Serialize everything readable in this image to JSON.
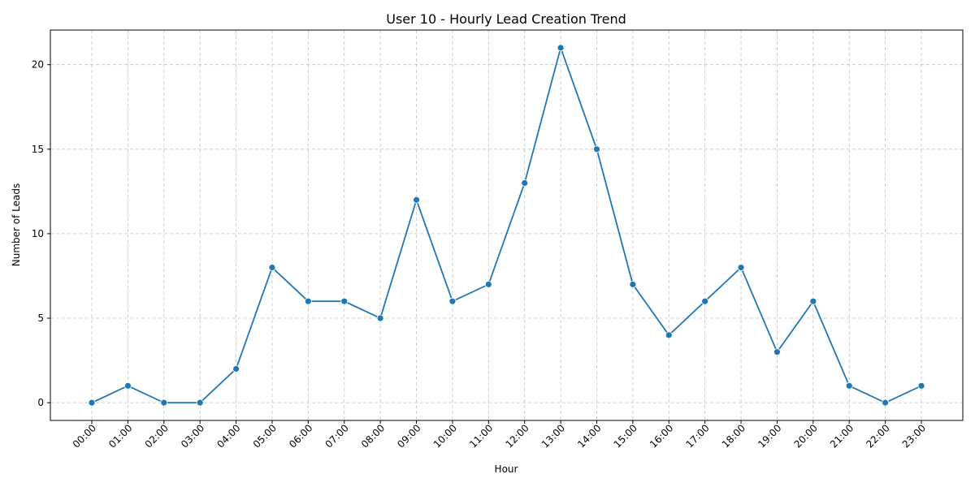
{
  "chart_data": {
    "type": "line",
    "title": "User 10 - Hourly Lead Creation Trend",
    "xlabel": "Hour",
    "ylabel": "Number of Leads",
    "categories": [
      "00:00",
      "01:00",
      "02:00",
      "03:00",
      "04:00",
      "05:00",
      "06:00",
      "07:00",
      "08:00",
      "09:00",
      "10:00",
      "11:00",
      "12:00",
      "13:00",
      "14:00",
      "15:00",
      "16:00",
      "17:00",
      "18:00",
      "19:00",
      "20:00",
      "21:00",
      "22:00",
      "23:00"
    ],
    "series": [
      {
        "values": [
          0,
          1,
          0,
          0,
          2,
          8,
          6,
          6,
          5,
          12,
          6,
          7,
          13,
          21,
          15,
          7,
          4,
          6,
          8,
          3,
          6,
          1,
          0,
          1
        ]
      }
    ],
    "ylim": [
      -1.05,
      22.05
    ],
    "yticks": [
      0,
      5,
      10,
      15,
      20
    ],
    "grid": true,
    "color": "#1f77b4"
  }
}
